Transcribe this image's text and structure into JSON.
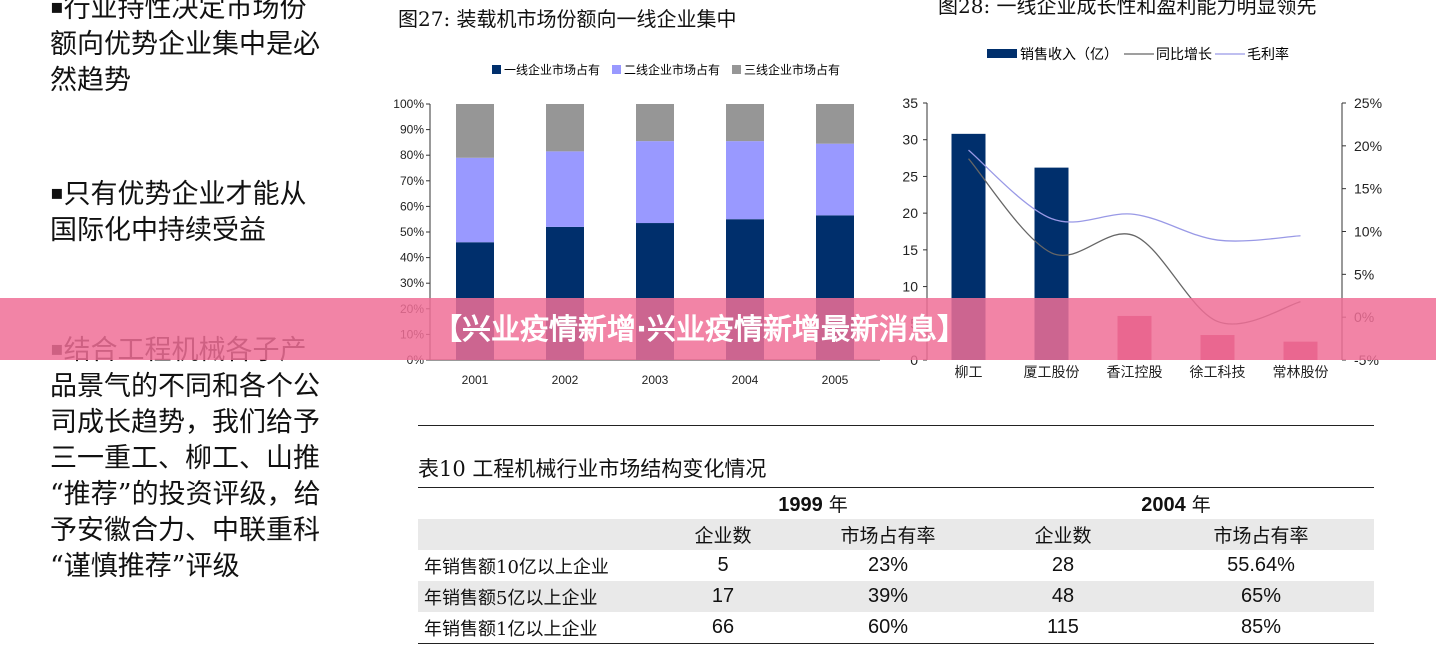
{
  "left_bullets": [
    {
      "marker": "▪",
      "lines": [
        "行业持性决定市场份",
        "额向优势企业集中是必",
        "然趋势"
      ]
    },
    {
      "marker": "▪",
      "lines": [
        "只有优势企业才能从",
        "国际化中持续受益"
      ]
    },
    {
      "marker": "▪",
      "lines": [
        "结合工程机械各子产",
        "品景气的不同和各个公",
        "司成长趋势，我们给予",
        "三一重工、柳工、山推",
        "“推荐”的投资评级，给",
        "予安徽合力、中联重科",
        "“谨慎推荐”评级"
      ]
    }
  ],
  "figure27": {
    "title": "图27:  装载机市场份额向一线企业集中",
    "legend": [
      "一线企业市场占有",
      "二线企业市场占有",
      "三线企业市场占有"
    ],
    "colors": [
      "#002f6c",
      "#9999ff",
      "#969696"
    ]
  },
  "figure28": {
    "title": "图28:  一线企业成长性和盈利能力明显领先",
    "legend": [
      "销售收入（亿）",
      "同比增长",
      "毛利率"
    ],
    "colors": [
      "#002f6c",
      "#666666",
      "#9999e6",
      "#c8416a"
    ]
  },
  "chart_data": [
    {
      "type": "bar",
      "stacked": true,
      "categories": [
        "2001",
        "2002",
        "2003",
        "2004",
        "2005"
      ],
      "series": [
        {
          "name": "一线企业市场占有",
          "values": [
            46,
            52,
            53.5,
            55,
            56.5
          ]
        },
        {
          "name": "二线企业市场占有",
          "values": [
            33,
            29.5,
            32,
            30.5,
            28
          ]
        },
        {
          "name": "三线企业市场占有",
          "values": [
            21,
            18.5,
            14.5,
            14.5,
            15.5
          ]
        }
      ],
      "ylim": [
        0,
        100
      ],
      "yticks": [
        "0%",
        "10%",
        "20%",
        "30%",
        "40%",
        "50%",
        "60%",
        "70%",
        "80%",
        "90%",
        "100%"
      ]
    },
    {
      "type": "bar",
      "categories": [
        "柳工",
        "厦工股份",
        "香江控股",
        "徐工科技",
        "常林股份"
      ],
      "series": [
        {
          "name": "销售收入（亿）",
          "values": [
            30.8,
            26.2,
            6,
            3.4,
            2.5
          ]
        },
        {
          "name": "同比增长",
          "values": [
            18.5,
            7.5,
            9.5,
            -0.5,
            1.8
          ]
        },
        {
          "name": "毛利率",
          "values": [
            19.5,
            11.5,
            12,
            9,
            9.5
          ]
        }
      ],
      "ylim": [
        0,
        35
      ],
      "yticks_left": [
        "0",
        "5",
        "10",
        "15",
        "20",
        "25",
        "30",
        "35"
      ],
      "ylim_right": [
        -5,
        25
      ],
      "yticks_right": [
        "-5%",
        "0%",
        "5%",
        "10%",
        "15%",
        "20%",
        "25%"
      ]
    }
  ],
  "table10": {
    "title": "表10   工程机械行业市场结构变化情况",
    "year1": "1999",
    "year2": "2004",
    "year_suffix": "年",
    "col_headers": [
      "企业数",
      "市场占有率",
      "企业数",
      "市场占有率"
    ],
    "rows": [
      {
        "label": "年销售额10亿以上企业",
        "cells": [
          "5",
          "23%",
          "28",
          "55.64%"
        ]
      },
      {
        "label": "年销售额5亿以上企业",
        "cells": [
          "17",
          "39%",
          "48",
          "65%"
        ]
      },
      {
        "label": "年销售额1亿以上企业",
        "cells": [
          "66",
          "60%",
          "115",
          "85%"
        ]
      }
    ]
  },
  "banner": {
    "text": "【兴业疫情新增·兴业疫情新增最新消息】"
  }
}
